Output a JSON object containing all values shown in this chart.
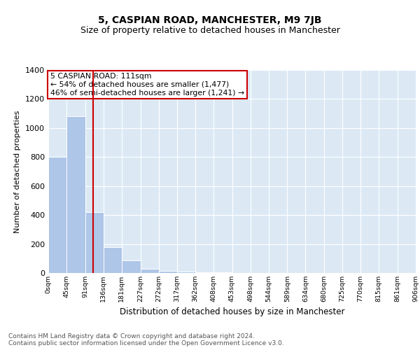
{
  "title": "5, CASPIAN ROAD, MANCHESTER, M9 7JB",
  "subtitle": "Size of property relative to detached houses in Manchester",
  "xlabel": "Distribution of detached houses by size in Manchester",
  "ylabel": "Number of detached properties",
  "bar_values": [
    800,
    1080,
    420,
    180,
    85,
    30,
    15,
    8,
    4,
    3,
    2,
    1,
    1,
    1,
    0,
    0,
    0,
    0,
    0,
    0
  ],
  "bar_left_edges": [
    0,
    45,
    91,
    136,
    181,
    227,
    272,
    317,
    362,
    408,
    453,
    498,
    544,
    589,
    634,
    680,
    725,
    770,
    815,
    861
  ],
  "bar_widths": [
    45,
    46,
    45,
    45,
    46,
    45,
    45,
    45,
    46,
    45,
    45,
    46,
    45,
    45,
    46,
    45,
    45,
    45,
    46,
    45
  ],
  "bar_color": "#aec6e8",
  "property_line_x": 111,
  "property_line_color": "#cc0000",
  "annotation_text": "5 CASPIAN ROAD: 111sqm\n← 54% of detached houses are smaller (1,477)\n46% of semi-detached houses are larger (1,241) →",
  "annotation_box_color": "#cc0000",
  "ylim": [
    0,
    1400
  ],
  "yticks": [
    0,
    200,
    400,
    600,
    800,
    1000,
    1200,
    1400
  ],
  "xtick_labels": [
    "0sqm",
    "45sqm",
    "91sqm",
    "136sqm",
    "181sqm",
    "227sqm",
    "272sqm",
    "317sqm",
    "362sqm",
    "408sqm",
    "453sqm",
    "498sqm",
    "544sqm",
    "589sqm",
    "634sqm",
    "680sqm",
    "725sqm",
    "770sqm",
    "815sqm",
    "861sqm",
    "906sqm"
  ],
  "xtick_positions": [
    0,
    45,
    91,
    136,
    181,
    227,
    272,
    317,
    362,
    408,
    453,
    498,
    544,
    589,
    634,
    680,
    725,
    770,
    815,
    861,
    906
  ],
  "grid_color": "#ffffff",
  "plot_background": "#dce9f5",
  "fig_background": "#ffffff",
  "footer_text": "Contains HM Land Registry data © Crown copyright and database right 2024.\nContains public sector information licensed under the Open Government Licence v3.0.",
  "title_fontsize": 10,
  "subtitle_fontsize": 9,
  "footer_fontsize": 6.5
}
